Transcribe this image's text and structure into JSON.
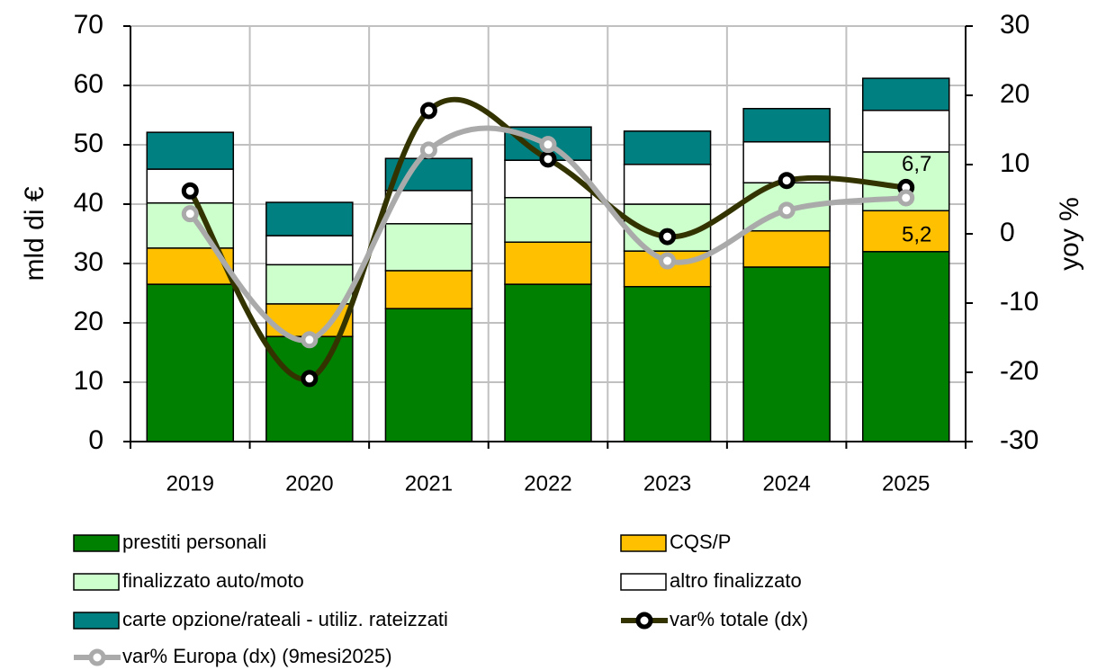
{
  "chart_data": {
    "type": "bar",
    "categories": [
      "2019",
      "2020",
      "2021",
      "2022",
      "2023",
      "2024",
      "2025"
    ],
    "series": [
      {
        "name": "prestiti personali",
        "color": "#008000",
        "values": [
          26.5,
          17.7,
          22.4,
          26.5,
          26.1,
          29.4,
          32.0
        ]
      },
      {
        "name": "CQS/P",
        "color": "#ffc000",
        "values": [
          6.1,
          5.5,
          6.4,
          7.1,
          6.0,
          6.1,
          6.9
        ]
      },
      {
        "name": "finalizzato auto/moto",
        "color": "#ccffcc",
        "values": [
          7.6,
          6.6,
          7.9,
          7.5,
          7.9,
          8.1,
          9.9
        ]
      },
      {
        "name": "altro finalizzato",
        "color": "#ffffff",
        "values": [
          5.7,
          4.9,
          5.6,
          6.3,
          6.7,
          6.9,
          7.0
        ]
      },
      {
        "name": "carte opzione/rateali - utiliz. rateizzati",
        "color": "#008080",
        "values": [
          6.2,
          5.6,
          5.4,
          5.6,
          5.6,
          5.6,
          5.4
        ]
      },
      {
        "name": "var% totale (dx)",
        "type": "line",
        "axis": "y2",
        "color": "#333300",
        "values": [
          6.2,
          -20.9,
          17.8,
          10.8,
          -0.4,
          7.7,
          6.7
        ],
        "value_labels": [
          null,
          null,
          null,
          null,
          null,
          null,
          "6,7"
        ]
      },
      {
        "name": "var% Europa (dx) (9mesi2025)",
        "type": "line",
        "axis": "y2",
        "color": "#aaaaaa",
        "values": [
          2.9,
          -15.3,
          12.1,
          12.9,
          -3.9,
          3.4,
          5.2
        ],
        "value_labels": [
          null,
          null,
          null,
          null,
          null,
          null,
          "5,2"
        ]
      }
    ],
    "ylabel": "mld di €",
    "y2label": "yoy %",
    "ylim": [
      0,
      70
    ],
    "yticks": [
      0,
      10,
      20,
      30,
      40,
      50,
      60,
      70
    ],
    "y2lim": [
      -30,
      30
    ],
    "y2ticks": [
      -30,
      -20,
      -10,
      0,
      10,
      20,
      30
    ],
    "grid": true,
    "stacked": true,
    "legend": "bottom"
  }
}
